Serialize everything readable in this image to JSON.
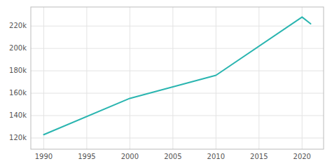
{
  "chart_data": {
    "type": "line",
    "x": [
      1990,
      2000,
      2010,
      2020,
      2021
    ],
    "values": [
      123000,
      155400,
      176000,
      228000,
      222000
    ],
    "color": "#2ab5b0",
    "xlim": [
      1988.5,
      2022.5
    ],
    "ylim": [
      110000,
      237000
    ],
    "xticks": [
      1990,
      1995,
      2000,
      2005,
      2010,
      2015,
      2020
    ],
    "yticks": [
      {
        "value": 120000,
        "label": "120k"
      },
      {
        "value": 140000,
        "label": "140k"
      },
      {
        "value": 160000,
        "label": "160k"
      },
      {
        "value": 180000,
        "label": "180k"
      },
      {
        "value": 200000,
        "label": "200k"
      },
      {
        "value": 220000,
        "label": "220k"
      }
    ],
    "grid": true
  }
}
